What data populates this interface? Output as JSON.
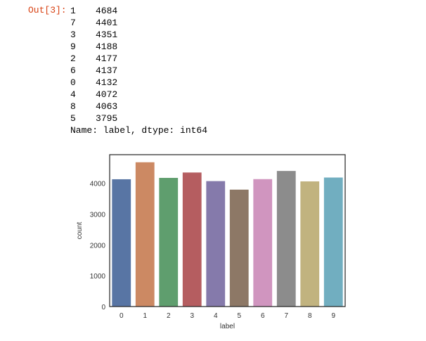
{
  "cell": {
    "prompt": "Out[3]:",
    "series_rows": [
      {
        "index": "1",
        "value": "4684"
      },
      {
        "index": "7",
        "value": "4401"
      },
      {
        "index": "3",
        "value": "4351"
      },
      {
        "index": "9",
        "value": "4188"
      },
      {
        "index": "2",
        "value": "4177"
      },
      {
        "index": "6",
        "value": "4137"
      },
      {
        "index": "0",
        "value": "4132"
      },
      {
        "index": "4",
        "value": "4072"
      },
      {
        "index": "8",
        "value": "4063"
      },
      {
        "index": "5",
        "value": "3795"
      }
    ],
    "footer": "Name: label, dtype: int64"
  },
  "chart_data": {
    "type": "bar",
    "title": "",
    "xlabel": "label",
    "ylabel": "count",
    "categories": [
      "0",
      "1",
      "2",
      "3",
      "4",
      "5",
      "6",
      "7",
      "8",
      "9"
    ],
    "values": [
      4132,
      4684,
      4177,
      4351,
      4072,
      3795,
      4137,
      4401,
      4063,
      4188
    ],
    "colors": [
      "#5875a4",
      "#cc8963",
      "#5f9e6e",
      "#b55d60",
      "#857aab",
      "#8d7866",
      "#d095bf",
      "#8c8c8c",
      "#c1b37f",
      "#71aec0"
    ],
    "yticks": [
      "0",
      "1000",
      "2000",
      "3000",
      "4000"
    ],
    "ylim": [
      0,
      4930
    ],
    "grid": false
  }
}
